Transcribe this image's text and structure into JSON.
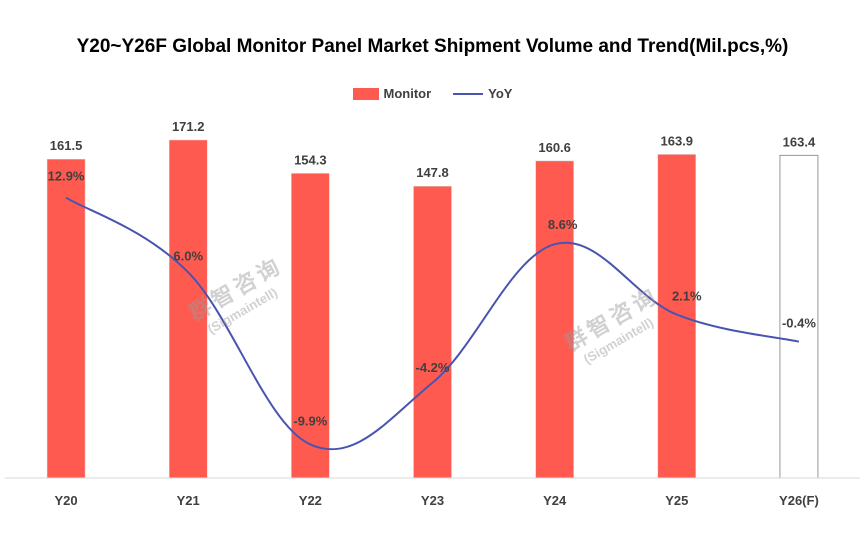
{
  "chart_data": {
    "type": "bar+line",
    "title": "Y20~Y26F Global Monitor Panel Market Shipment Volume and Trend(Mil.pcs,%)",
    "categories": [
      "Y20",
      "Y21",
      "Y22",
      "Y23",
      "Y24",
      "Y25",
      "Y26(F)"
    ],
    "series": [
      {
        "name": "Monitor",
        "type": "bar",
        "values": [
          161.5,
          171.2,
          154.3,
          147.8,
          160.6,
          163.9,
          163.4
        ],
        "labels": [
          "161.5",
          "171.2",
          "154.3",
          "147.8",
          "160.6",
          "163.9",
          "163.4"
        ],
        "forecast_index": 6
      },
      {
        "name": "YoY",
        "type": "line",
        "values": [
          12.9,
          6.0,
          -9.9,
          -4.2,
          8.6,
          2.1,
          -0.4
        ],
        "labels": [
          "12.9%",
          "6.0%",
          "-9.9%",
          "-4.2%",
          "8.6%",
          "2.1%",
          "-0.4%"
        ]
      }
    ],
    "ylim_bar": [
      0,
      180
    ],
    "ylim_line": [
      -13,
      21
    ],
    "legend": "top"
  },
  "watermark": {
    "cn": "群智咨询",
    "en": "(Sigmaintell)"
  },
  "colors": {
    "bar": "#ff5a50",
    "bar_edge": "#d9d9d9",
    "line": "#4a54b0",
    "axis": "#d9d9d9"
  }
}
